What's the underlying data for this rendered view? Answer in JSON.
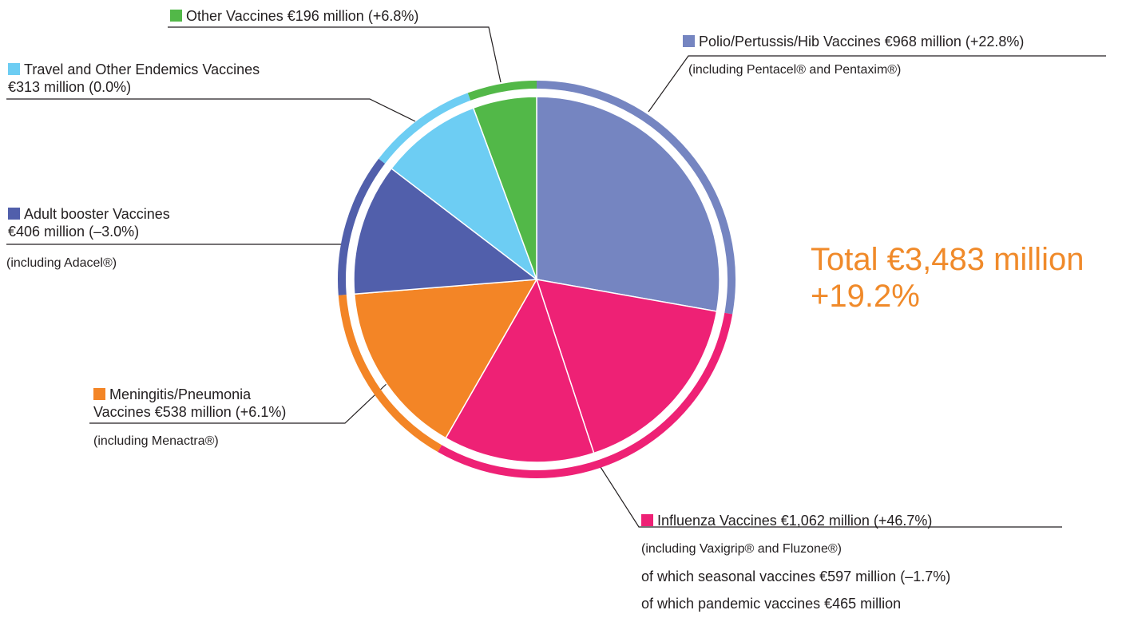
{
  "chart_data": {
    "type": "pie",
    "total": {
      "label": "Total",
      "value": 3483,
      "value_label": "€3,483 million",
      "change": "+19.2%",
      "color": "#f08a2a"
    },
    "slices": [
      {
        "name": "Polio/Pertussis/Hib Vaccines",
        "value": 968,
        "value_label": "€968 million",
        "change": "(+22.8%)",
        "note": "(including Pentacel® and Pentaxim®)",
        "color": "#7585c1"
      },
      {
        "name": "Influenza Vaccines",
        "value": 1062,
        "value_label": "€1,062 million",
        "change": "(+46.7%)",
        "note": "(including Vaxigrip® and Fluzone®)",
        "color": "#ee2175",
        "parts": [
          {
            "name": "of which seasonal vaccines",
            "value": 597,
            "value_label": "€597 million",
            "change": "(–1.7%)"
          },
          {
            "name": "of which pandemic vaccines",
            "value": 465,
            "value_label": "€465 million"
          }
        ]
      },
      {
        "name": "Meningitis/Pneumonia Vaccines",
        "value": 538,
        "value_label": "€538 million",
        "change": "(+6.1%)",
        "note": "(including Menactra®)",
        "color": "#f38526"
      },
      {
        "name": "Adult booster Vaccines",
        "value": 406,
        "value_label": "€406 million",
        "change": "(–3.0%)",
        "note": "(including Adacel®)",
        "color": "#515fab"
      },
      {
        "name": "Travel and Other Endemics Vaccines",
        "value": 313,
        "value_label": "€313 million",
        "change": "(0.0%)",
        "color": "#6dcdf3"
      },
      {
        "name": "Other Vaccines",
        "value": 196,
        "value_label": "€196 million",
        "change": "(+6.8%)",
        "color": "#52b848"
      }
    ]
  }
}
